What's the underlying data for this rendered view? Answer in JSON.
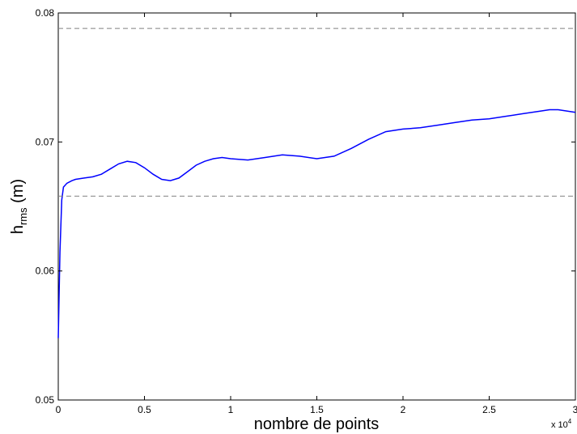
{
  "chart_data": {
    "type": "line",
    "xlabel": "nombre de points",
    "ylabel_main": "h",
    "ylabel_sub": "rms",
    "ylabel_unit": " (m)",
    "x_multiplier_base": "x 10",
    "x_multiplier_exp": "4",
    "xlim": [
      0,
      3
    ],
    "ylim": [
      0.05,
      0.08
    ],
    "xticks": [
      0,
      0.5,
      1,
      1.5,
      2,
      2.5,
      3
    ],
    "xtick_labels": [
      "0",
      "0.5",
      "1",
      "1.5",
      "2",
      "2.5",
      "3"
    ],
    "yticks": [
      0.05,
      0.06,
      0.07,
      0.08
    ],
    "ytick_labels": [
      "0.05",
      "0.06",
      "0.07",
      "0.08"
    ],
    "grid": false,
    "series": [
      {
        "color": "#0000ff",
        "style": "solid",
        "x": [
          0.0,
          0.01,
          0.02,
          0.03,
          0.05,
          0.08,
          0.1,
          0.15,
          0.2,
          0.25,
          0.3,
          0.35,
          0.4,
          0.45,
          0.5,
          0.55,
          0.6,
          0.65,
          0.7,
          0.75,
          0.8,
          0.85,
          0.9,
          0.95,
          1.0,
          1.1,
          1.2,
          1.3,
          1.4,
          1.5,
          1.6,
          1.7,
          1.8,
          1.9,
          2.0,
          2.1,
          2.2,
          2.3,
          2.4,
          2.5,
          2.6,
          2.7,
          2.8,
          2.85,
          2.9,
          2.95,
          3.0
        ],
        "y": [
          0.0548,
          0.0615,
          0.0655,
          0.0665,
          0.0668,
          0.067,
          0.0671,
          0.0672,
          0.0673,
          0.0675,
          0.0679,
          0.0683,
          0.0685,
          0.0684,
          0.068,
          0.0675,
          0.0671,
          0.067,
          0.0672,
          0.0677,
          0.0682,
          0.0685,
          0.0687,
          0.0688,
          0.0687,
          0.0686,
          0.0688,
          0.069,
          0.0689,
          0.0687,
          0.0689,
          0.0695,
          0.0702,
          0.0708,
          0.071,
          0.0711,
          0.0713,
          0.0715,
          0.0717,
          0.0718,
          0.072,
          0.0722,
          0.0724,
          0.0725,
          0.0725,
          0.0724,
          0.0723
        ]
      },
      {
        "color": "#808080",
        "style": "dashed",
        "x": [
          0,
          3
        ],
        "y": [
          0.0788,
          0.0788
        ]
      },
      {
        "color": "#808080",
        "style": "dashed",
        "x": [
          0,
          3
        ],
        "y": [
          0.0658,
          0.0658
        ]
      }
    ]
  }
}
